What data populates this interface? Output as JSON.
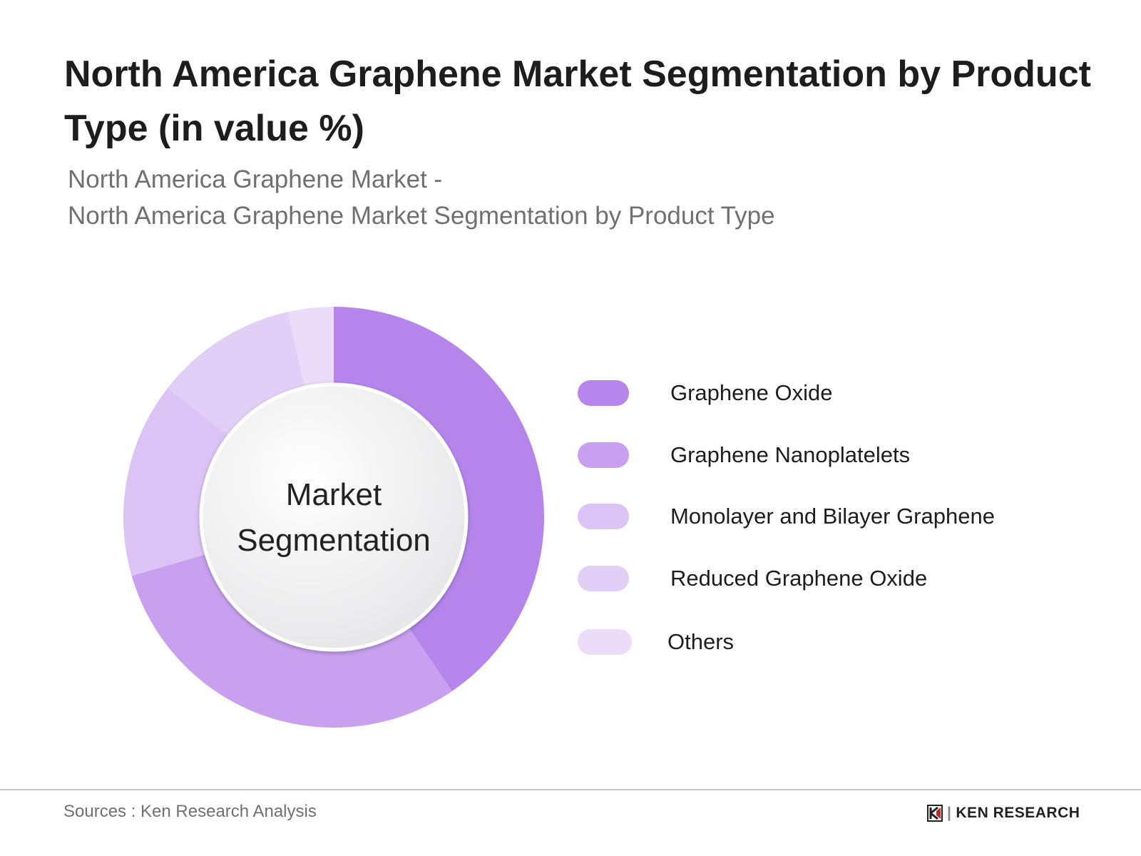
{
  "chart_data": {
    "type": "pie",
    "variant": "donut",
    "title": "North America Graphene Market Segmentation by Product Type (in value %)",
    "subtitle_lines": [
      "North America Graphene Market -",
      "North America Graphene Market Segmentation by Product Type"
    ],
    "center_label": [
      "Market",
      "Segmentation"
    ],
    "categories": [
      "Graphene Oxide",
      "Graphene Nanoplatelets",
      "Monolayer and Bilayer Graphene",
      "Reduced Graphene Oxide",
      "Others"
    ],
    "values": [
      40.5,
      30,
      15,
      11,
      3.5
    ],
    "colors": [
      "#b585ec",
      "#c8a0ef",
      "#dbc3f6",
      "#e2cff7",
      "#ebdcfa"
    ],
    "legend_position": "right"
  },
  "footer": {
    "source": "Sources : Ken Research Analysis",
    "logo_text": "KEN RESEARCH"
  }
}
